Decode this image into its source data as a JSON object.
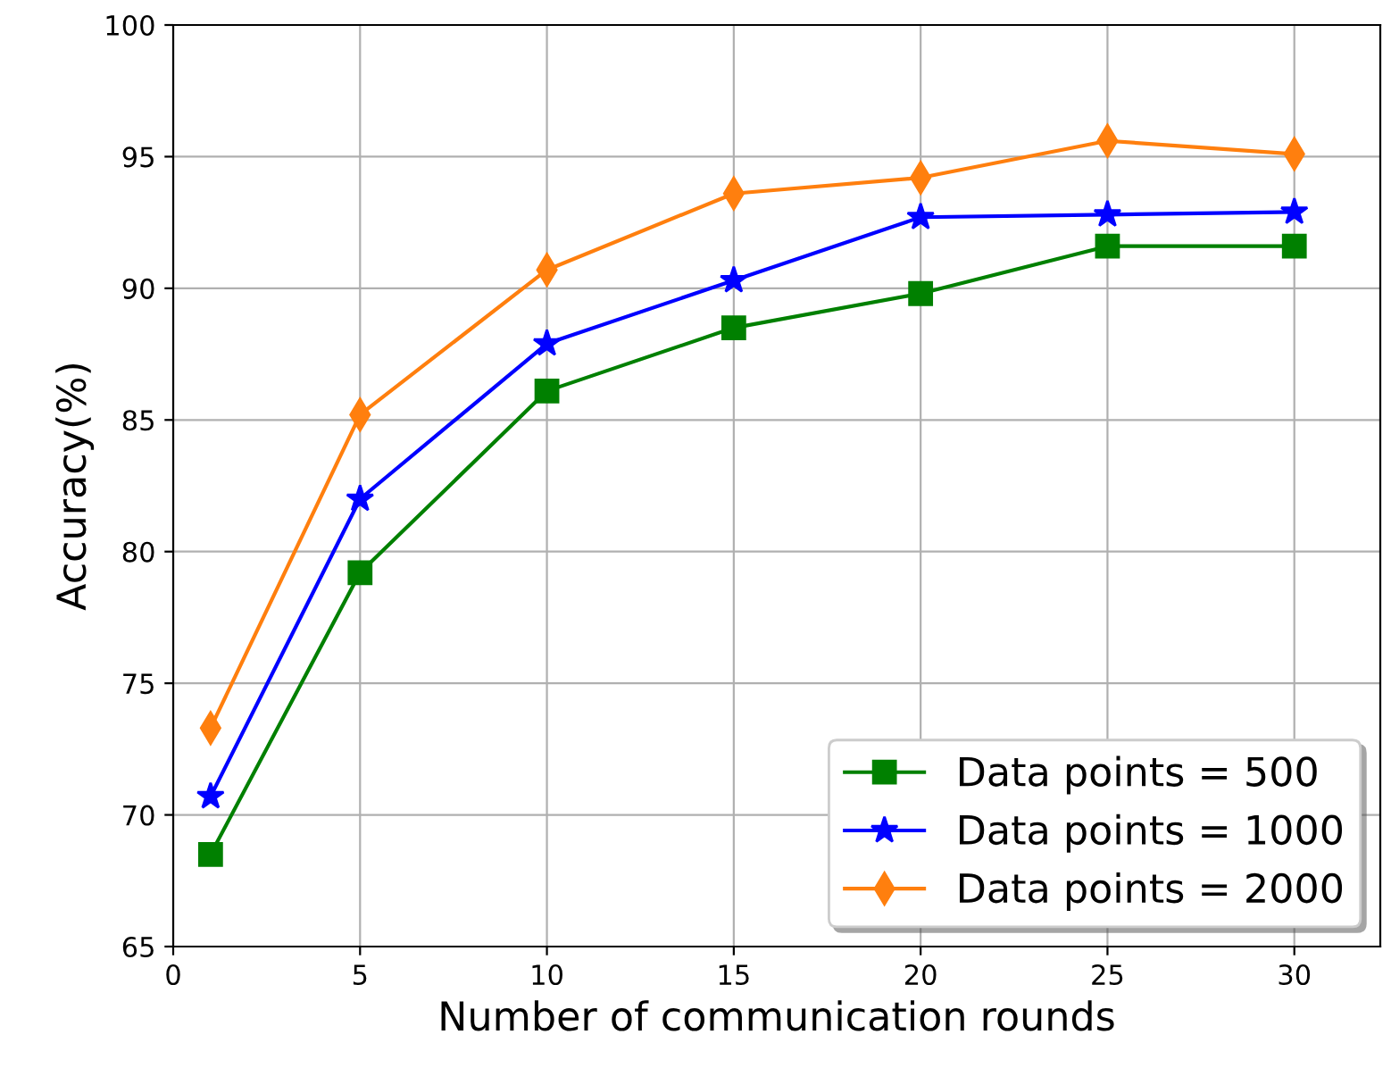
{
  "chart_data": {
    "type": "line",
    "xlabel": "Number of communication rounds",
    "ylabel": "Accuracy(%)",
    "x": [
      1,
      5,
      10,
      15,
      20,
      25,
      30
    ],
    "series": [
      {
        "name": "Data points = 500",
        "color": "#008000",
        "marker": "square",
        "values": [
          68.5,
          79.2,
          86.1,
          88.5,
          89.8,
          91.6,
          91.6
        ]
      },
      {
        "name": "Data points = 1000",
        "color": "#0000ff",
        "marker": "star",
        "values": [
          70.7,
          82.0,
          87.9,
          90.3,
          92.7,
          92.8,
          92.9
        ]
      },
      {
        "name": "Data points = 2000",
        "color": "#ff7f0e",
        "marker": "diamond",
        "values": [
          73.3,
          85.2,
          90.7,
          93.6,
          94.2,
          95.6,
          95.1
        ]
      }
    ],
    "xlim": [
      0,
      32.3
    ],
    "xticks": [
      0,
      5,
      10,
      15,
      20,
      25,
      30
    ],
    "ylim": [
      65,
      100
    ],
    "yticks": [
      65,
      70,
      75,
      80,
      85,
      90,
      95,
      100
    ],
    "grid": true,
    "legend": "bottom right",
    "line_style": "solid"
  }
}
